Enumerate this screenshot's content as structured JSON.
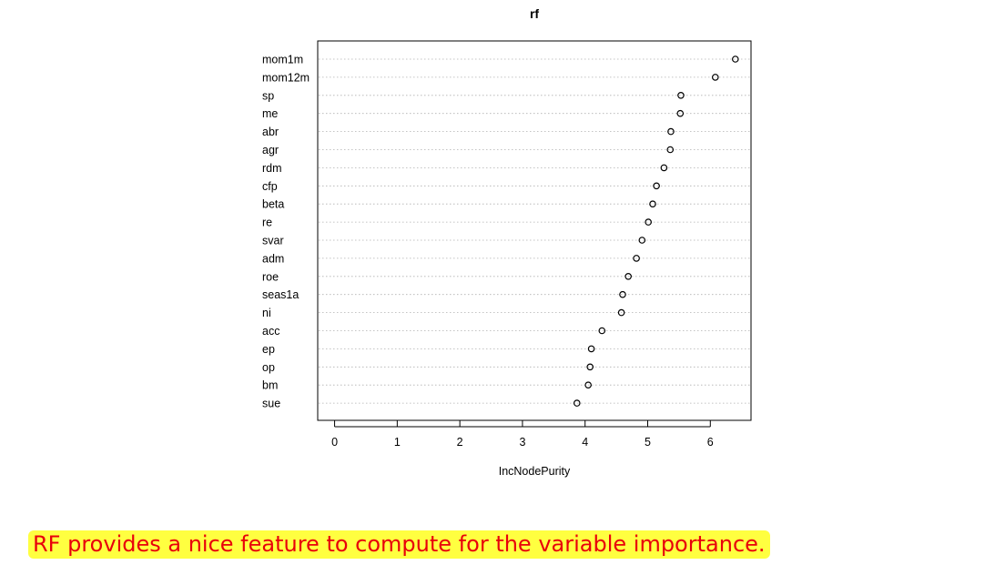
{
  "chart_data": {
    "type": "scatter",
    "title": "rf",
    "xlabel": "IncNodePurity",
    "ylabel": "",
    "xlim": [
      -0.27,
      6.65
    ],
    "xticks": [
      0,
      1,
      2,
      3,
      4,
      5,
      6
    ],
    "grid": "horizontal-dotted",
    "categories": [
      "mom1m",
      "mom12m",
      "sp",
      "me",
      "abr",
      "agr",
      "rdm",
      "cfp",
      "beta",
      "re",
      "svar",
      "adm",
      "roe",
      "seas1a",
      "ni",
      "acc",
      "ep",
      "op",
      "bm",
      "sue"
    ],
    "values": [
      6.4,
      6.08,
      5.53,
      5.52,
      5.37,
      5.36,
      5.26,
      5.14,
      5.08,
      5.01,
      4.91,
      4.82,
      4.69,
      4.6,
      4.58,
      4.27,
      4.1,
      4.08,
      4.05,
      3.87
    ]
  },
  "caption": "RF provides a nice feature to compute for the variable importance."
}
